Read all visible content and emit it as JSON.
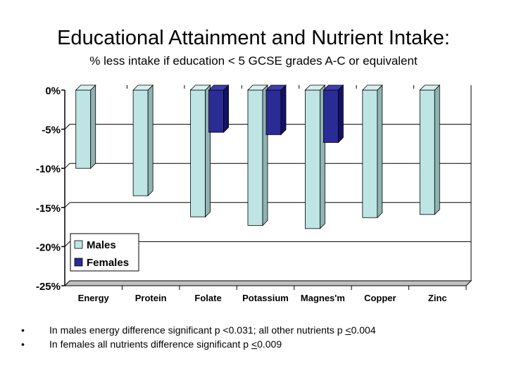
{
  "title": "Educational Attainment and Nutrient Intake:",
  "subtitle": "% less intake if education < 5 GCSE grades A-C or equivalent",
  "colors": {
    "males_face": "#bfe4e4",
    "females_face": "#2b2b96",
    "wall": "#ffffff",
    "floor": "#c0c0c0"
  },
  "chart_data": {
    "type": "bar",
    "categories": [
      "Energy",
      "Protein",
      "Folate",
      "Potassium",
      "Magnes'm",
      "Copper",
      "Zinc"
    ],
    "series": [
      {
        "name": "Males",
        "values": [
          -10.0,
          -13.5,
          -16.2,
          -17.3,
          -17.7,
          -16.3,
          -15.9
        ]
      },
      {
        "name": "Females",
        "values": [
          0,
          0,
          -5.4,
          -5.7,
          -6.7,
          0,
          0
        ]
      }
    ],
    "yticks": [
      "0%",
      "-5%",
      "-10%",
      "-15%",
      "-20%",
      "-25%"
    ],
    "ylim": [
      -25,
      0
    ],
    "legend_position": "bottom-left inside plot"
  },
  "notes": [
    {
      "bullet": "•",
      "pre": "In males energy difference significant p <0.031; all other nutrients p ",
      "u": "<",
      "post": "0.004"
    },
    {
      "bullet": "•",
      "pre": "In females all nutrients difference significant p ",
      "u": "<",
      "post": "0.009"
    }
  ]
}
